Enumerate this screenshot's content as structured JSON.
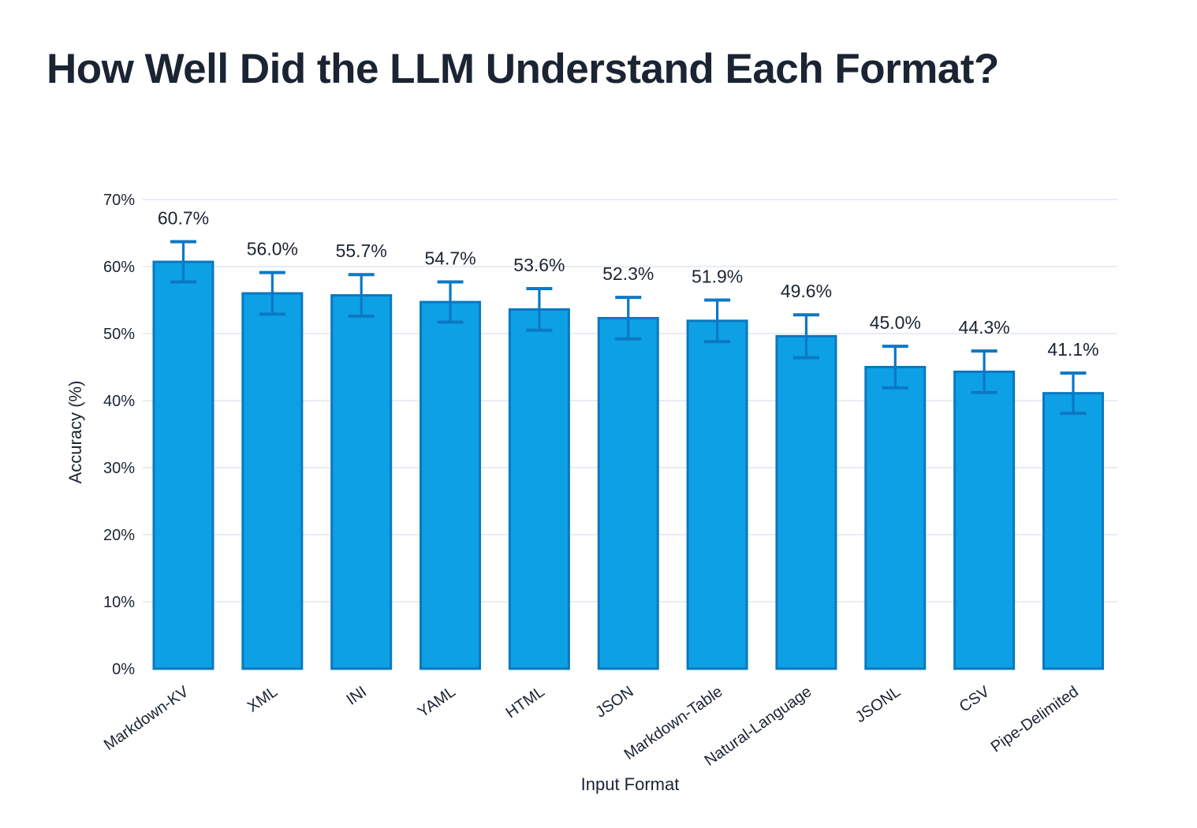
{
  "page": {
    "background": "#FFFFFF"
  },
  "chart_data": {
    "type": "bar",
    "title": "How Well Did the LLM Understand Each Format?",
    "xlabel": "Input Format",
    "ylabel": "Accuracy (%)",
    "categories": [
      "Markdown-KV",
      "XML",
      "INI",
      "YAML",
      "HTML",
      "JSON",
      "Markdown-Table",
      "Natural-Language",
      "JSONL",
      "CSV",
      "Pipe-Delimited"
    ],
    "values": [
      60.7,
      56.0,
      55.7,
      54.7,
      53.6,
      52.3,
      51.9,
      49.6,
      45.0,
      44.3,
      41.1
    ],
    "value_labels": [
      "60.7%",
      "56.0%",
      "55.7%",
      "54.7%",
      "53.6%",
      "52.3%",
      "51.9%",
      "49.6%",
      "45.0%",
      "44.3%",
      "41.1%"
    ],
    "error_bars": [
      3.0,
      3.1,
      3.1,
      3.0,
      3.1,
      3.1,
      3.1,
      3.2,
      3.1,
      3.1,
      3.0
    ],
    "ylim": [
      0,
      70
    ],
    "yticks": [
      0,
      10,
      20,
      30,
      40,
      50,
      60,
      70
    ],
    "ytick_labels": [
      "0%",
      "10%",
      "20%",
      "30%",
      "40%",
      "50%",
      "60%",
      "70%"
    ],
    "xtick_rotation_deg": -35,
    "grid": "horizontal",
    "legend": "none",
    "error_bar_style": "symmetric-capped",
    "colors": {
      "bar_fill": "#0EA0E4",
      "bar_border": "#0A78C0",
      "error_bar": "#0B78C4",
      "text": "#1A2433",
      "gridline": "#E9ECF3",
      "background": "#FFFFFF"
    }
  }
}
